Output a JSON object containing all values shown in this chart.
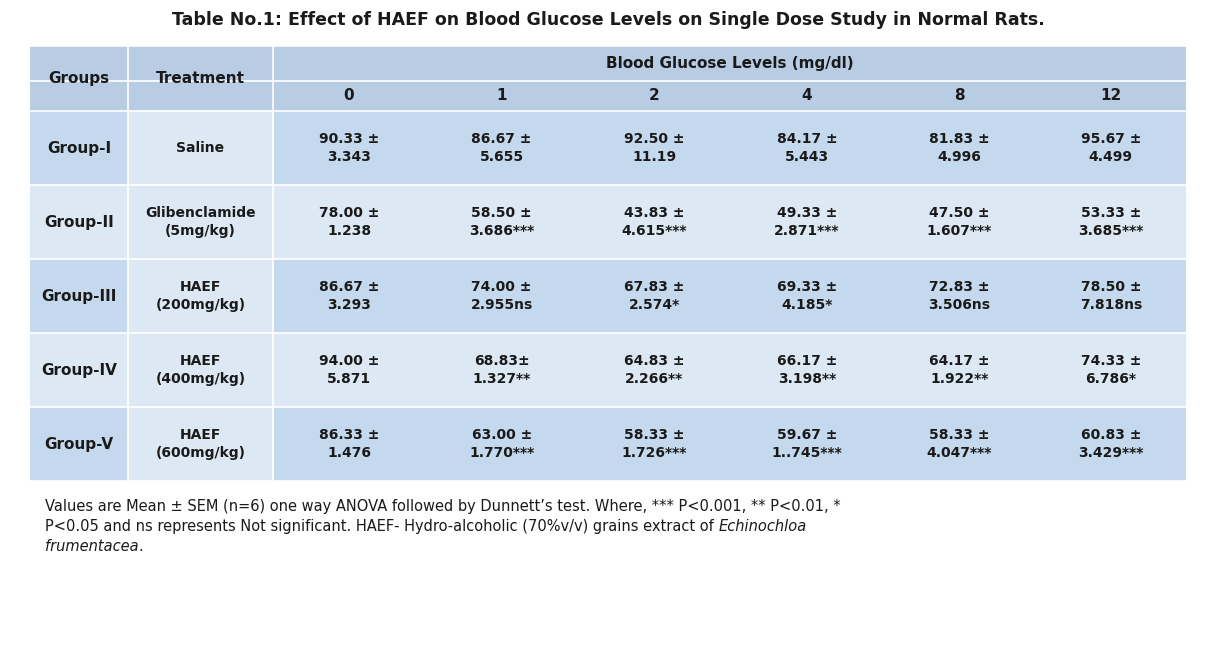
{
  "title": "Table No.1: Effect of HAEF on Blood Glucose Levels on Single Dose Study in Normal Rats.",
  "title_fontsize": 12.5,
  "bg_color": "#ffffff",
  "table_outer_bg": "#b8cce4",
  "groups_col_bg": "#b8cce4",
  "treatment_col_bg": "#dce9f5",
  "data_area_bg": "#dce9f5",
  "header_row_bg": "#b8cce4",
  "row_colors": [
    "#c5d9ee",
    "#dce9f5",
    "#c5d9ee",
    "#dce9f5",
    "#c5d9ee"
  ],
  "col_headers": [
    "Groups",
    "Treatment",
    "0",
    "1",
    "2",
    "4",
    "8",
    "12"
  ],
  "blood_glucose_label": "Blood Glucose Levels (mg/dl)",
  "groups": [
    "Group-I",
    "Group-II",
    "Group-III",
    "Group-IV",
    "Group-V"
  ],
  "treatments": [
    "Saline",
    "Glibenclamide\n(5mg/kg)",
    "HAEF\n(200mg/kg)",
    "HAEF\n(400mg/kg)",
    "HAEF\n(600mg/kg)"
  ],
  "cell_data": [
    [
      "90.33 ±\n3.343",
      "86.67 ±\n5.655",
      "92.50 ±\n11.19",
      "84.17 ±\n5.443",
      "81.83 ±\n4.996",
      "95.67 ±\n4.499"
    ],
    [
      "78.00 ±\n1.238",
      "58.50 ±\n3.686***",
      "43.83 ±\n4.615***",
      "49.33 ±\n2.871***",
      "47.50 ±\n1.607***",
      "53.33 ±\n3.685***"
    ],
    [
      "86.67 ±\n3.293",
      "74.00 ±\n2.955ns",
      "67.83 ±\n2.574*",
      "69.33 ±\n4.185*",
      "72.83 ±\n3.506ns",
      "78.50 ±\n7.818ns"
    ],
    [
      "94.00 ±\n5.871",
      "68.83±\n1.327**",
      "64.83 ±\n2.266**",
      "66.17 ±\n3.198**",
      "64.17 ±\n1.922**",
      "74.33 ±\n6.786*"
    ],
    [
      "86.33 ±\n1.476",
      "63.00 ±\n1.770***",
      "58.33 ±\n1.726***",
      "59.67 ±\n1..745***",
      "58.33 ±\n4.047***",
      "60.83 ±\n3.429***"
    ]
  ],
  "font_family": "DejaVu Sans",
  "cell_fontsize": 10.0,
  "header_fontsize": 11.0,
  "group_fontsize": 11.0,
  "footer_fontsize": 10.5,
  "footer_line1": "Values are Mean ± SEM (n=6) one way ANOVA followed by Dunnett’s test. Where, *** P<0.001, ** P<0.01, *",
  "footer_line2_normal": "P<0.05 and ns represents Not significant. HAEF- Hydro-alcoholic (70%v/v) grains extract of ",
  "footer_line2_italic": "Echinochloa",
  "footer_line3_italic": "frumentacea",
  "footer_line3_end": "."
}
